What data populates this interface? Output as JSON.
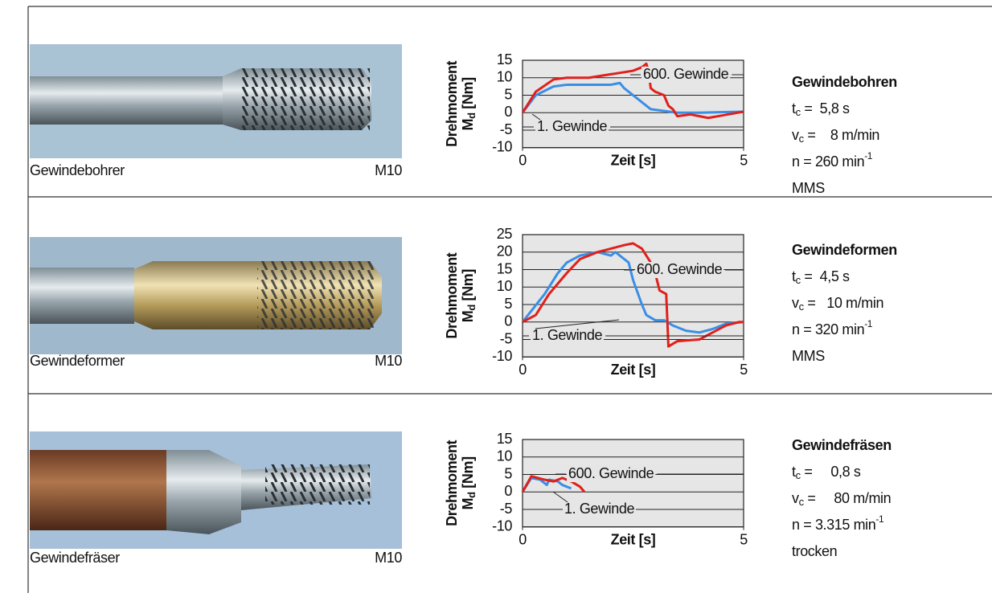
{
  "rows": [
    {
      "tool": "Gewindebohrer",
      "size": "M10",
      "process": "Gewindebohren",
      "params": [
        {
          "symbol": "t",
          "sub": "c",
          "text": " =  5,8 s"
        },
        {
          "symbol": "v",
          "sub": "c",
          "text": " =    8 m/min"
        },
        {
          "symbol": "n",
          "text": " = 260 min",
          "sup": "-1"
        },
        {
          "text": "MMS"
        }
      ]
    },
    {
      "tool": "Gewindeformer",
      "size": "M10",
      "process": "Gewindeformen",
      "params": [
        {
          "symbol": "t",
          "sub": "c",
          "text": " =  4,5 s"
        },
        {
          "symbol": "v",
          "sub": "c",
          "text": " =   10 m/min"
        },
        {
          "symbol": "n",
          "text": " = 320 min",
          "sup": "-1"
        },
        {
          "text": "MMS"
        }
      ]
    },
    {
      "tool": "Gewindefräser",
      "size": "M10",
      "process": "Gewindefräsen",
      "params": [
        {
          "symbol": "t",
          "sub": "c",
          "text": " =     0,8 s"
        },
        {
          "symbol": "v",
          "sub": "c",
          "text": " =     80 m/min"
        },
        {
          "symbol": "n",
          "text": " = 3.315 min",
          "sup": "-1"
        },
        {
          "text": "trocken"
        }
      ]
    }
  ],
  "chart_data": [
    {
      "type": "line",
      "x_label": "Zeit [s]",
      "y_label": "Drehmoment",
      "y_symbol": "M",
      "y_sub": "d",
      "y_unit": "[Nm]",
      "xlim": [
        0,
        5
      ],
      "xticks": [
        0,
        5
      ],
      "ylim": [
        -10,
        15
      ],
      "yticks": [
        -10,
        -5,
        0,
        5,
        10,
        15
      ],
      "grid": true,
      "series": [
        {
          "name": "1. Gewinde",
          "color": "#3a8ee6",
          "x": [
            0,
            0.3,
            0.7,
            1,
            2,
            2.2,
            2.3,
            2.6,
            2.9,
            3.2,
            3.5,
            4,
            5
          ],
          "values": [
            0,
            5,
            7.5,
            8,
            8,
            8.5,
            7,
            4,
            1,
            0.5,
            0,
            0,
            0.3
          ]
        },
        {
          "name": "600. Gewinde",
          "color": "#e0201b",
          "x": [
            0,
            0.3,
            0.7,
            1,
            1.5,
            2,
            2.5,
            2.7,
            2.8,
            2.85,
            2.9,
            3.0,
            3.2,
            3.3,
            3.4,
            3.5,
            3.8,
            4,
            4.2,
            5
          ],
          "values": [
            0,
            6,
            9.5,
            10,
            10,
            11,
            12,
            13,
            14,
            12,
            7,
            6,
            5,
            2,
            1,
            -1,
            -0.5,
            -1,
            -1.5,
            0.3
          ]
        }
      ]
    },
    {
      "type": "line",
      "x_label": "Zeit [s]",
      "y_label": "Drehmoment",
      "y_symbol": "M",
      "y_sub": "d",
      "y_unit": "[Nm]",
      "xlim": [
        0,
        5
      ],
      "xticks": [
        0,
        5
      ],
      "ylim": [
        -10,
        25
      ],
      "yticks": [
        -10,
        -5,
        0,
        5,
        10,
        15,
        20,
        25
      ],
      "grid": true,
      "series": [
        {
          "name": "1. Gewinde",
          "color": "#3a8ee6",
          "x": [
            0,
            0.5,
            0.8,
            1,
            1.3,
            1.7,
            2.0,
            2.1,
            2.2,
            2.4,
            2.5,
            2.7,
            2.8,
            3.0,
            3.2,
            3.4,
            3.7,
            4.0,
            4.3,
            4.6,
            5
          ],
          "values": [
            0,
            8,
            14,
            17,
            19,
            20,
            19,
            20,
            19,
            17,
            12,
            5,
            2,
            0.5,
            0.5,
            -1,
            -2.5,
            -3,
            -2,
            -0.5,
            0
          ]
        },
        {
          "name": "600. Gewinde",
          "color": "#e0201b",
          "x": [
            0,
            0.3,
            0.6,
            1,
            1.3,
            1.7,
            2.0,
            2.3,
            2.5,
            2.7,
            2.9,
            3.0,
            3.1,
            3.25,
            3.3,
            3.5,
            4,
            4.3,
            4.6,
            4.9,
            5
          ],
          "values": [
            0,
            2,
            8,
            14,
            18,
            20,
            21,
            22,
            22.5,
            21,
            17,
            14,
            9,
            8,
            -7,
            -5.5,
            -5,
            -3,
            -1,
            0,
            0
          ]
        }
      ]
    },
    {
      "type": "line",
      "x_label": "Zeit [s]",
      "y_label": "Drehmoment",
      "y_symbol": "M",
      "y_sub": "d",
      "y_unit": "[Nm]",
      "xlim": [
        0,
        5
      ],
      "xticks": [
        0,
        5
      ],
      "ylim": [
        -10,
        15
      ],
      "yticks": [
        -10,
        -5,
        0,
        5,
        10,
        15
      ],
      "grid": true,
      "series": [
        {
          "name": "1. Gewinde",
          "color": "#3a8ee6",
          "x": [
            0,
            0.2,
            0.4,
            0.55,
            0.6,
            0.8,
            0.9,
            1.1
          ],
          "values": [
            0,
            4,
            3.5,
            2,
            3.5,
            3,
            2,
            1
          ]
        },
        {
          "name": "600. Gewinde",
          "color": "#e0201b",
          "x": [
            0,
            0.2,
            0.5,
            0.7,
            0.9,
            1.1,
            1.3,
            1.4
          ],
          "values": [
            0,
            4.5,
            3.5,
            3,
            4,
            3,
            1.5,
            0
          ]
        }
      ]
    }
  ]
}
